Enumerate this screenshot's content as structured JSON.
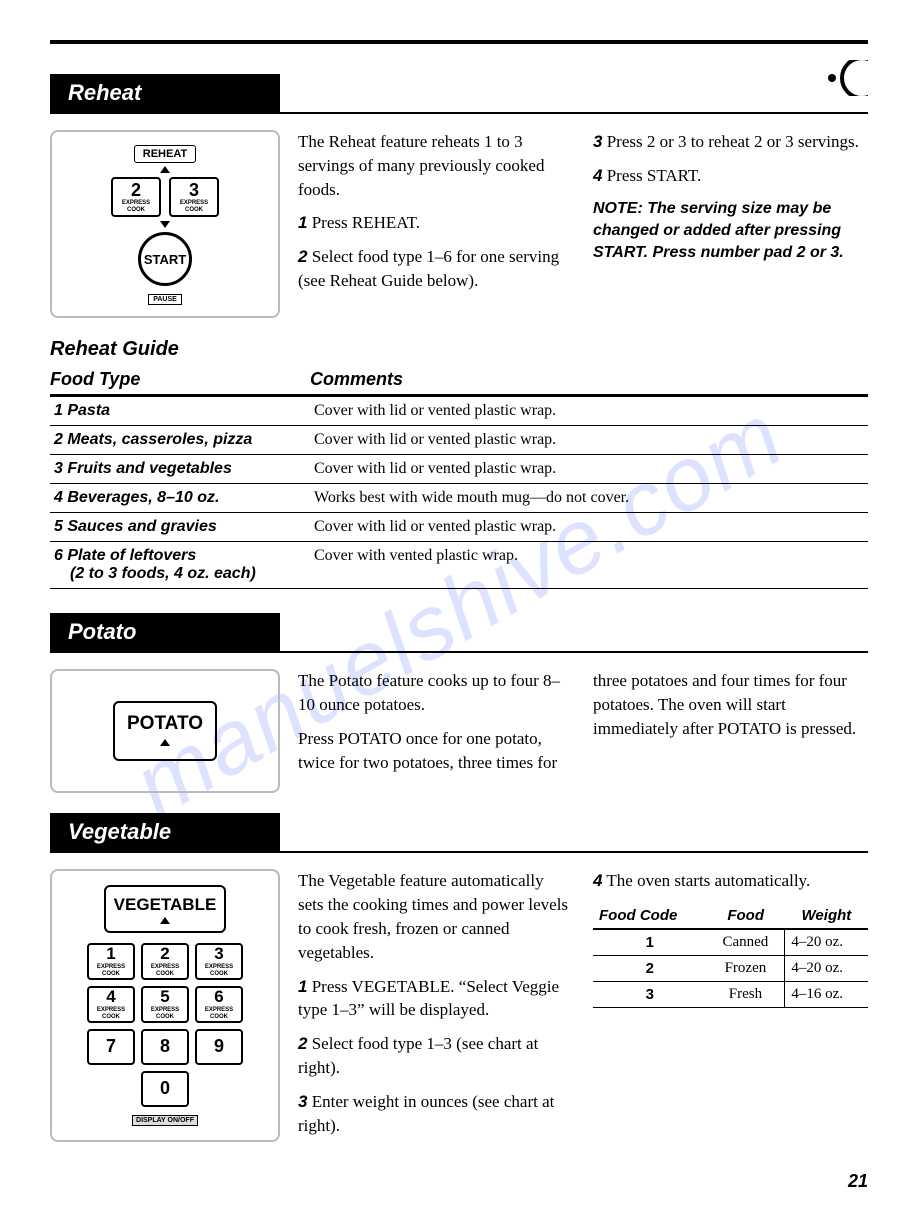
{
  "page_number": "21",
  "watermark": "manuelshive.com",
  "reheat": {
    "header": "Reheat",
    "diagram": {
      "reheat_label": "REHEAT",
      "btn2": "2",
      "btn2_sub": "EXPRESS COOK",
      "btn3": "3",
      "btn3_sub": "EXPRESS COOK",
      "start": "START",
      "pause": "PAUSE"
    },
    "intro": "The Reheat feature reheats 1 to 3 servings of many previously cooked foods.",
    "step1_n": "1",
    "step1": "Press REHEAT.",
    "step2_n": "2",
    "step2": "Select food type 1–6 for one serving (see Reheat Guide below).",
    "step3_n": "3",
    "step3": "Press 2 or 3 to reheat 2 or 3 servings.",
    "step4_n": "4",
    "step4": "Press START.",
    "note": "NOTE: The serving size may be changed or added after pressing START. Press number pad 2 or 3.",
    "guide_title": "Reheat Guide",
    "col1": "Food Type",
    "col2": "Comments",
    "rows": [
      {
        "ft": "1 Pasta",
        "c": "Cover with lid or vented plastic wrap."
      },
      {
        "ft": "2 Meats, casseroles, pizza",
        "c": "Cover with lid or vented plastic wrap."
      },
      {
        "ft": "3 Fruits and vegetables",
        "c": "Cover with lid or vented plastic wrap."
      },
      {
        "ft": "4 Beverages, 8–10 oz.",
        "c": "Works best with wide mouth mug—do not cover."
      },
      {
        "ft": "5 Sauces and gravies",
        "c": "Cover with lid or vented plastic wrap."
      },
      {
        "ft": "6 Plate of leftovers",
        "ft2": "(2 to 3 foods, 4 oz. each)",
        "c": "Cover with vented plastic wrap."
      }
    ]
  },
  "potato": {
    "header": "Potato",
    "btn": "POTATO",
    "p1": "The Potato feature cooks up to four 8–10 ounce potatoes.",
    "p2": "Press POTATO once for one potato, twice for two potatoes, three times for",
    "p3": "three potatoes and four times for four potatoes. The oven will start immediately after POTATO is pressed."
  },
  "vegetable": {
    "header": "Vegetable",
    "btn": "VEGETABLE",
    "keypad": {
      "k1": "1",
      "k2": "2",
      "k3": "3",
      "k4": "4",
      "k5": "5",
      "k6": "6",
      "k7": "7",
      "k8": "8",
      "k9": "9",
      "k0": "0",
      "sub": "EXPRESS COOK",
      "disp": "DISPLAY ON/OFF"
    },
    "intro": "The Vegetable feature automatically sets the cooking times and power levels to cook fresh, frozen or canned vegetables.",
    "s1n": "1",
    "s1": "Press VEGETABLE. “Select Veggie type 1–3” will be displayed.",
    "s2n": "2",
    "s2": "Select food type 1–3 (see chart at right).",
    "s3n": "3",
    "s3": "Enter weight in ounces (see chart at right).",
    "s4n": "4",
    "s4": "The oven starts automatically.",
    "table": {
      "h1": "Food Code",
      "h2": "Food",
      "h3": "Weight",
      "rows": [
        {
          "code": "1",
          "food": "Canned",
          "w": "4–20 oz."
        },
        {
          "code": "2",
          "food": "Frozen",
          "w": "4–20 oz."
        },
        {
          "code": "3",
          "food": "Fresh",
          "w": "4–16 oz."
        }
      ]
    }
  }
}
